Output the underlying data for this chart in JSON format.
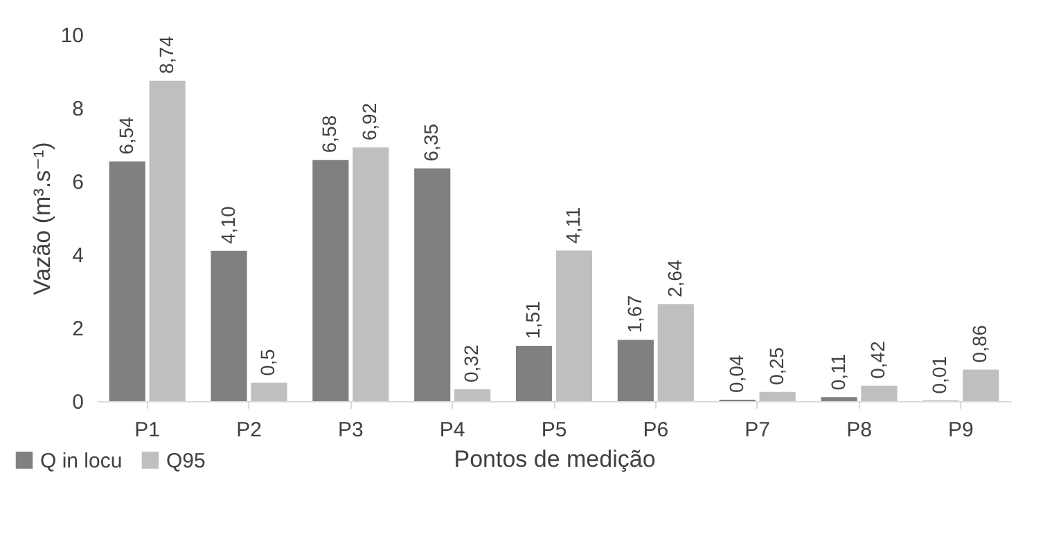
{
  "chart_data": {
    "type": "bar",
    "xlabel": "Pontos de medição",
    "ylabel": "Vazão (m³.s⁻¹)",
    "categories": [
      "P1",
      "P2",
      "P3",
      "P4",
      "P5",
      "P6",
      "P7",
      "P8",
      "P9"
    ],
    "series": [
      {
        "name": "Q in locu",
        "color": "#808080",
        "values": [
          6.54,
          4.1,
          6.58,
          6.35,
          1.51,
          1.67,
          0.04,
          0.11,
          0.01
        ],
        "value_labels": [
          "6,54",
          "4,10",
          "6,58",
          "6,35",
          "1,51",
          "1,67",
          "0,04",
          "0,11",
          "0,01"
        ]
      },
      {
        "name": "Q95",
        "color": "#bfbfbf",
        "values": [
          8.74,
          0.5,
          6.92,
          0.32,
          4.11,
          2.64,
          0.25,
          0.42,
          0.86
        ],
        "value_labels": [
          "8,74",
          "0,5",
          "6,92",
          "0,32",
          "4,11",
          "2,64",
          "0,25",
          "0,42",
          "0,86"
        ]
      }
    ],
    "ylim": [
      0,
      10
    ],
    "yticks": [
      0,
      2,
      4,
      6,
      8,
      10
    ],
    "grid": false,
    "legend": "bottom left"
  }
}
